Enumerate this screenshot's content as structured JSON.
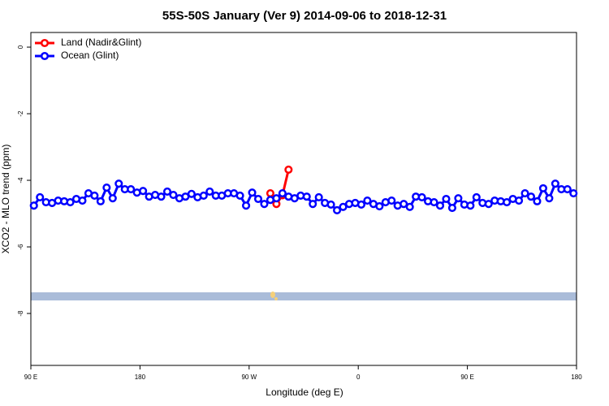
{
  "chart_data": {
    "type": "line",
    "title": "55S-50S January (Ver 9)   2014-09-06 to 2018-12-31",
    "xlabel": "Longitude (deg E)",
    "ylabel": "XCO2 - MLO trend (ppm)",
    "xlim": [
      90,
      540
    ],
    "ylim": [
      -9.56,
      0.44
    ],
    "xticks": [
      {
        "value": 90,
        "label": "90 E"
      },
      180,
      {
        "value": 270,
        "label": "90 W"
      },
      {
        "value": 360,
        "label": "0"
      },
      {
        "value": 450,
        "label": "90 E"
      },
      {
        "value": 540,
        "label": "180"
      }
    ],
    "yticks": [
      0,
      -2,
      -4,
      -6,
      -8
    ],
    "legend": "top-left",
    "series": [
      {
        "name": "Land (Nadir&Glint)",
        "color": "#ff0000",
        "x": [
          287.5,
          292.5,
          297.5,
          302.5
        ],
        "values": [
          -4.39,
          -4.71,
          -4.45,
          -3.68
        ]
      },
      {
        "name": "Ocean (Glint)",
        "color": "#0000ff",
        "x": [
          92.5,
          97.5,
          102.5,
          107.5,
          112.5,
          117.5,
          122.5,
          127.5,
          132.5,
          137.5,
          142.5,
          147.5,
          152.5,
          157.5,
          162.5,
          167.5,
          172.5,
          177.5,
          182.5,
          187.5,
          192.5,
          197.5,
          202.5,
          207.5,
          212.5,
          217.5,
          222.5,
          227.5,
          232.5,
          237.5,
          242.5,
          247.5,
          252.5,
          257.5,
          262.5,
          267.5,
          272.5,
          277.5,
          282.5,
          287.5,
          292.5,
          297.5,
          302.5,
          307.5,
          312.5,
          317.5,
          322.5,
          327.5,
          332.5,
          337.5,
          342.5,
          347.5,
          352.5,
          357.5,
          362.5,
          367.5,
          372.5,
          377.5,
          382.5,
          387.5,
          392.5,
          397.5,
          402.5,
          407.5,
          412.5,
          417.5,
          422.5,
          427.5,
          432.5,
          437.5,
          442.5,
          447.5,
          452.5,
          457.5,
          462.5,
          467.5,
          472.5,
          477.5,
          482.5,
          487.5,
          492.5,
          497.5,
          502.5,
          507.5,
          512.5,
          517.5,
          522.5,
          527.5,
          532.5,
          537.5
        ],
        "values": [
          -4.76,
          -4.51,
          -4.66,
          -4.68,
          -4.61,
          -4.63,
          -4.66,
          -4.56,
          -4.61,
          -4.39,
          -4.46,
          -4.63,
          -4.22,
          -4.54,
          -4.1,
          -4.27,
          -4.27,
          -4.37,
          -4.32,
          -4.49,
          -4.44,
          -4.49,
          -4.34,
          -4.44,
          -4.54,
          -4.49,
          -4.41,
          -4.51,
          -4.46,
          -4.34,
          -4.46,
          -4.46,
          -4.39,
          -4.39,
          -4.46,
          -4.76,
          -4.37,
          -4.56,
          -4.71,
          -4.59,
          -4.54,
          -4.39,
          -4.49,
          -4.54,
          -4.46,
          -4.49,
          -4.71,
          -4.51,
          -4.68,
          -4.73,
          -4.9,
          -4.8,
          -4.71,
          -4.68,
          -4.73,
          -4.61,
          -4.71,
          -4.78,
          -4.66,
          -4.61,
          -4.76,
          -4.71,
          -4.8,
          -4.49,
          -4.51,
          -4.63,
          -4.66,
          -4.76,
          -4.56,
          -4.83,
          -4.54,
          -4.73,
          -4.76,
          -4.51,
          -4.68,
          -4.71,
          -4.61,
          -4.63,
          -4.66,
          -4.56,
          -4.61,
          -4.39,
          -4.49,
          -4.63,
          -4.24,
          -4.54,
          -4.1,
          -4.27,
          -4.27,
          -4.39
        ]
      }
    ]
  }
}
